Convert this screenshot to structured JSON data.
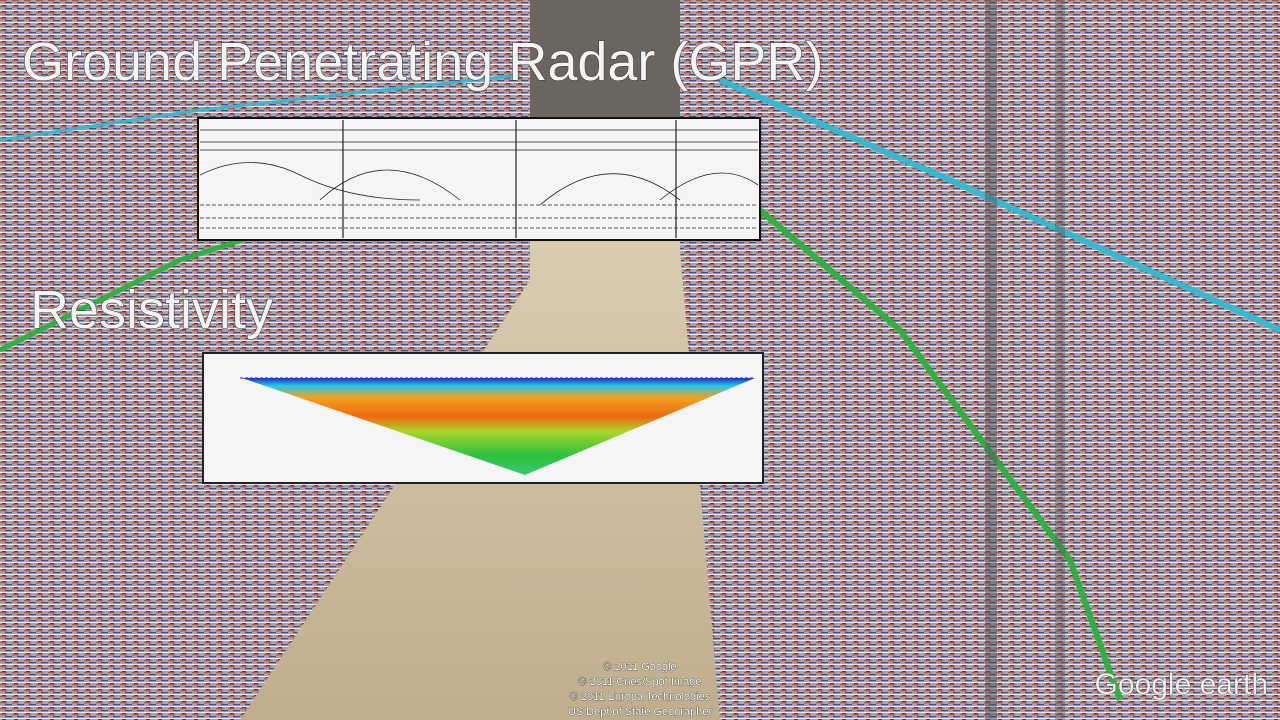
{
  "title": "Ground Penetrating Radar (GPR)",
  "section": "Resistivity",
  "attribution": [
    "© 2011 Google",
    "© 2011 Cnes/Spot Image",
    "© 2011 Europa Technologies",
    "US Dept of State Geographer"
  ],
  "logo": "Google earth"
}
